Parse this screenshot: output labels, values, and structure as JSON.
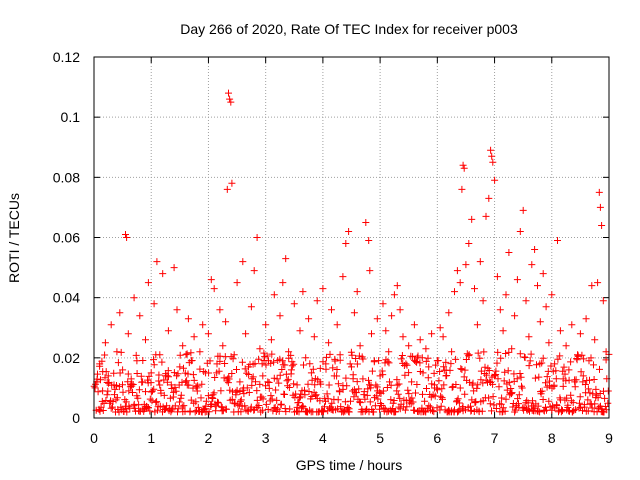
{
  "chart_data": {
    "type": "scatter",
    "title": "Day 266 of 2020, Rate Of TEC Index for receiver p003",
    "xlabel": "GPS time / hours",
    "ylabel": "ROTI / TECUs",
    "xlim": [
      0,
      9
    ],
    "ylim": [
      0,
      0.12
    ],
    "xticks": [
      0,
      1,
      2,
      3,
      4,
      5,
      6,
      7,
      8,
      9
    ],
    "xtick_labels": [
      "0",
      "1",
      "2",
      "3",
      "4",
      "5",
      "6",
      "7",
      "8",
      "9"
    ],
    "yticks": [
      0,
      0.02,
      0.04,
      0.06,
      0.08,
      0.1,
      0.12
    ],
    "ytick_labels": [
      "0",
      "0.02",
      "0.04",
      "0.06",
      "0.08",
      "0.1",
      "0.12"
    ],
    "grid": true,
    "marker": "+",
    "series": [
      {
        "name": "ROTI",
        "color": "#ff0000",
        "points": [
          [
            0.05,
            0.012
          ],
          [
            0.1,
            0.018
          ],
          [
            0.15,
            0.009
          ],
          [
            0.2,
            0.025
          ],
          [
            0.25,
            0.014
          ],
          [
            0.3,
            0.031
          ],
          [
            0.35,
            0.011
          ],
          [
            0.4,
            0.022
          ],
          [
            0.45,
            0.035
          ],
          [
            0.5,
            0.016
          ],
          [
            0.55,
            0.061
          ],
          [
            0.57,
            0.06
          ],
          [
            0.6,
            0.028
          ],
          [
            0.65,
            0.013
          ],
          [
            0.7,
            0.04
          ],
          [
            0.75,
            0.019
          ],
          [
            0.8,
            0.034
          ],
          [
            0.85,
            0.012
          ],
          [
            0.9,
            0.026
          ],
          [
            0.95,
            0.045
          ],
          [
            1.0,
            0.015
          ],
          [
            1.05,
            0.038
          ],
          [
            1.1,
            0.052
          ],
          [
            1.15,
            0.021
          ],
          [
            1.2,
            0.048
          ],
          [
            1.25,
            0.014
          ],
          [
            1.3,
            0.029
          ],
          [
            1.35,
            0.011
          ],
          [
            1.4,
            0.05
          ],
          [
            1.45,
            0.036
          ],
          [
            1.5,
            0.017
          ],
          [
            1.55,
            0.024
          ],
          [
            1.6,
            0.012
          ],
          [
            1.65,
            0.033
          ],
          [
            1.7,
            0.019
          ],
          [
            1.75,
            0.027
          ],
          [
            1.8,
            0.01
          ],
          [
            1.85,
            0.022
          ],
          [
            1.9,
            0.031
          ],
          [
            1.95,
            0.015
          ],
          [
            2.0,
            0.028
          ],
          [
            2.05,
            0.046
          ],
          [
            2.1,
            0.043
          ],
          [
            2.15,
            0.018
          ],
          [
            2.2,
            0.036
          ],
          [
            2.25,
            0.024
          ],
          [
            2.3,
            0.032
          ],
          [
            2.33,
            0.076
          ],
          [
            2.35,
            0.108
          ],
          [
            2.37,
            0.106
          ],
          [
            2.39,
            0.105
          ],
          [
            2.41,
            0.078
          ],
          [
            2.45,
            0.021
          ],
          [
            2.5,
            0.045
          ],
          [
            2.55,
            0.012
          ],
          [
            2.6,
            0.052
          ],
          [
            2.65,
            0.028
          ],
          [
            2.7,
            0.017
          ],
          [
            2.75,
            0.037
          ],
          [
            2.8,
            0.049
          ],
          [
            2.85,
            0.06
          ],
          [
            2.9,
            0.023
          ],
          [
            2.95,
            0.014
          ],
          [
            3.0,
            0.031
          ],
          [
            3.05,
            0.019
          ],
          [
            3.1,
            0.026
          ],
          [
            3.15,
            0.041
          ],
          [
            3.2,
            0.013
          ],
          [
            3.25,
            0.034
          ],
          [
            3.3,
            0.045
          ],
          [
            3.35,
            0.053
          ],
          [
            3.4,
            0.022
          ],
          [
            3.45,
            0.016
          ],
          [
            3.5,
            0.038
          ],
          [
            3.55,
            0.011
          ],
          [
            3.6,
            0.029
          ],
          [
            3.65,
            0.042
          ],
          [
            3.7,
            0.02
          ],
          [
            3.75,
            0.033
          ],
          [
            3.8,
            0.015
          ],
          [
            3.85,
            0.027
          ],
          [
            3.9,
            0.039
          ],
          [
            3.95,
            0.012
          ],
          [
            4.0,
            0.043
          ],
          [
            4.05,
            0.018
          ],
          [
            4.1,
            0.025
          ],
          [
            4.15,
            0.036
          ],
          [
            4.2,
            0.014
          ],
          [
            4.25,
            0.031
          ],
          [
            4.3,
            0.021
          ],
          [
            4.35,
            0.047
          ],
          [
            4.4,
            0.058
          ],
          [
            4.45,
            0.062
          ],
          [
            4.5,
            0.017
          ],
          [
            4.55,
            0.035
          ],
          [
            4.6,
            0.042
          ],
          [
            4.65,
            0.024
          ],
          [
            4.7,
            0.013
          ],
          [
            4.75,
            0.065
          ],
          [
            4.8,
            0.059
          ],
          [
            4.82,
            0.049
          ],
          [
            4.85,
            0.028
          ],
          [
            4.9,
            0.019
          ],
          [
            4.95,
            0.033
          ],
          [
            5.0,
            0.014
          ],
          [
            5.05,
            0.038
          ],
          [
            5.1,
            0.029
          ],
          [
            5.15,
            0.022
          ],
          [
            5.2,
            0.034
          ],
          [
            5.25,
            0.041
          ],
          [
            5.3,
            0.044
          ],
          [
            5.35,
            0.036
          ],
          [
            5.4,
            0.027
          ],
          [
            5.45,
            0.018
          ],
          [
            5.5,
            0.024
          ],
          [
            5.55,
            0.012
          ],
          [
            5.6,
            0.031
          ],
          [
            5.65,
            0.02
          ],
          [
            5.7,
            0.026
          ],
          [
            5.75,
            0.015
          ],
          [
            5.8,
            0.023
          ],
          [
            5.85,
            0.017
          ],
          [
            5.9,
            0.028
          ],
          [
            5.95,
            0.011
          ],
          [
            6.0,
            0.019
          ],
          [
            6.05,
            0.03
          ],
          [
            6.1,
            0.027
          ],
          [
            6.15,
            0.014
          ],
          [
            6.2,
            0.035
          ],
          [
            6.25,
            0.022
          ],
          [
            6.3,
            0.042
          ],
          [
            6.35,
            0.049
          ],
          [
            6.4,
            0.045
          ],
          [
            6.43,
            0.076
          ],
          [
            6.45,
            0.084
          ],
          [
            6.47,
            0.083
          ],
          [
            6.5,
            0.051
          ],
          [
            6.55,
            0.058
          ],
          [
            6.6,
            0.066
          ],
          [
            6.65,
            0.043
          ],
          [
            6.7,
            0.031
          ],
          [
            6.75,
            0.052
          ],
          [
            6.8,
            0.039
          ],
          [
            6.85,
            0.067
          ],
          [
            6.9,
            0.073
          ],
          [
            6.93,
            0.089
          ],
          [
            6.95,
            0.087
          ],
          [
            6.97,
            0.085
          ],
          [
            7.0,
            0.079
          ],
          [
            7.05,
            0.047
          ],
          [
            7.1,
            0.036
          ],
          [
            7.15,
            0.029
          ],
          [
            7.2,
            0.041
          ],
          [
            7.25,
            0.055
          ],
          [
            7.3,
            0.023
          ],
          [
            7.35,
            0.034
          ],
          [
            7.4,
            0.046
          ],
          [
            7.45,
            0.062
          ],
          [
            7.5,
            0.069
          ],
          [
            7.55,
            0.039
          ],
          [
            7.6,
            0.027
          ],
          [
            7.65,
            0.051
          ],
          [
            7.7,
            0.056
          ],
          [
            7.75,
            0.044
          ],
          [
            7.8,
            0.032
          ],
          [
            7.85,
            0.048
          ],
          [
            7.9,
            0.037
          ],
          [
            7.95,
            0.025
          ],
          [
            8.0,
            0.041
          ],
          [
            8.05,
            0.018
          ],
          [
            8.1,
            0.059
          ],
          [
            8.15,
            0.029
          ],
          [
            8.2,
            0.013
          ],
          [
            8.25,
            0.024
          ],
          [
            8.3,
            0.016
          ],
          [
            8.35,
            0.031
          ],
          [
            8.4,
            0.012
          ],
          [
            8.45,
            0.021
          ],
          [
            8.5,
            0.028
          ],
          [
            8.55,
            0.014
          ],
          [
            8.6,
            0.033
          ],
          [
            8.65,
            0.019
          ],
          [
            8.7,
            0.044
          ],
          [
            8.75,
            0.026
          ],
          [
            8.8,
            0.045
          ],
          [
            8.83,
            0.075
          ],
          [
            8.85,
            0.07
          ],
          [
            8.87,
            0.064
          ],
          [
            8.9,
            0.039
          ],
          [
            8.95,
            0.022
          ]
        ]
      }
    ],
    "dense_band": {
      "series": "ROTI",
      "x_range": [
        0,
        9
      ],
      "y_range": [
        0.002,
        0.022
      ],
      "description": "dense cloud of many hundreds of points concentrated along the bottom of the plot"
    }
  }
}
